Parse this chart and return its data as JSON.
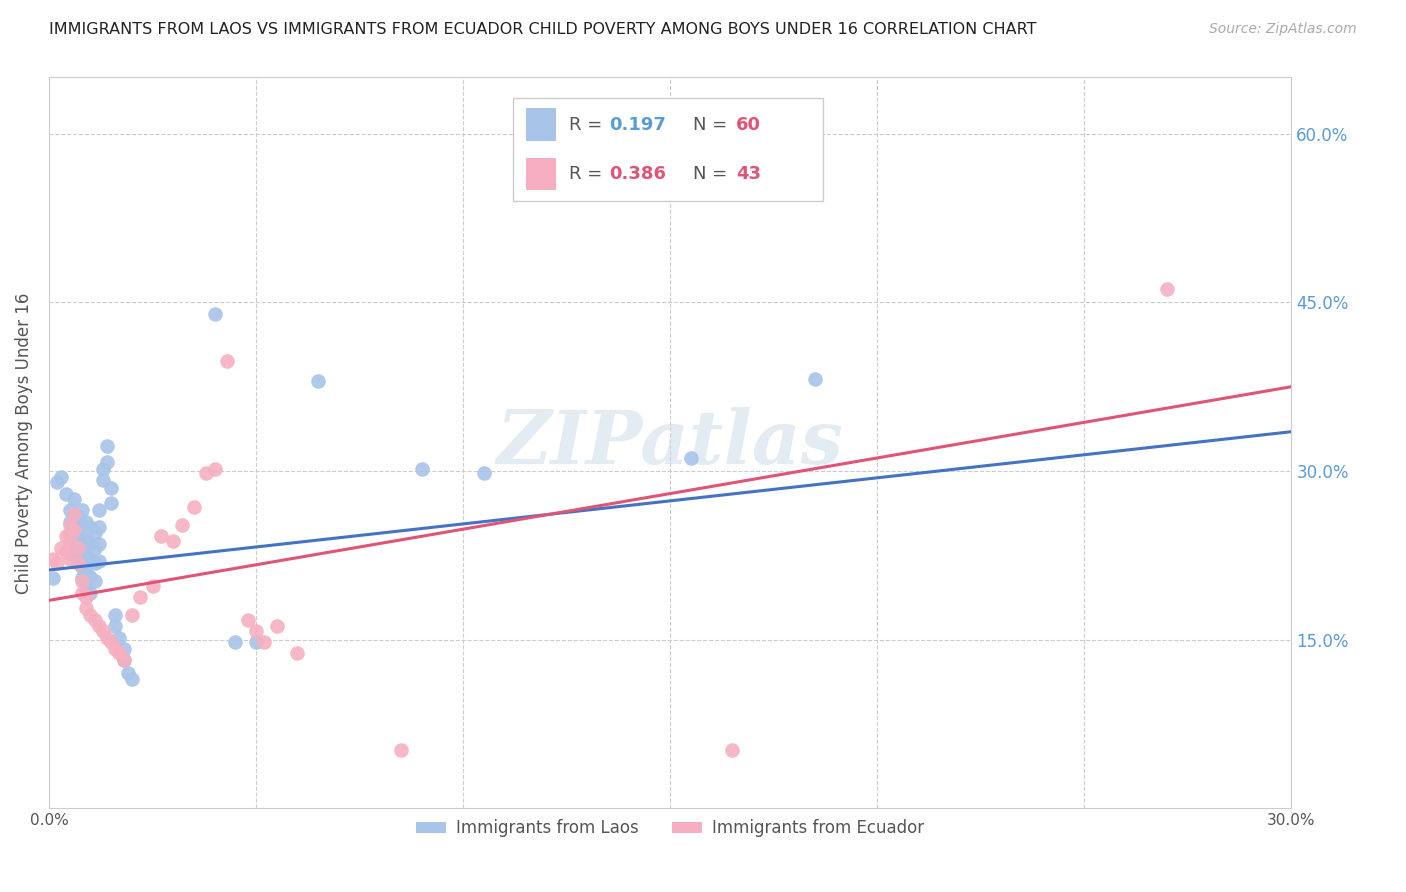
{
  "title": "IMMIGRANTS FROM LAOS VS IMMIGRANTS FROM ECUADOR CHILD POVERTY AMONG BOYS UNDER 16 CORRELATION CHART",
  "source": "Source: ZipAtlas.com",
  "ylabel": "Child Poverty Among Boys Under 16",
  "xmin": 0.0,
  "xmax": 0.3,
  "ymin": 0.0,
  "ymax": 0.65,
  "ytick_labels": [
    "15.0%",
    "30.0%",
    "45.0%",
    "60.0%"
  ],
  "ytick_positions": [
    0.15,
    0.3,
    0.45,
    0.6
  ],
  "legend_labels": [
    "Immigrants from Laos",
    "Immigrants from Ecuador"
  ],
  "legend_R": [
    "0.197",
    "0.386"
  ],
  "legend_N": [
    "60",
    "43"
  ],
  "color_blue": "#a8c4e8",
  "color_pink": "#f5afc0",
  "line_blue": "#4472c4",
  "line_pink": "#e05575",
  "watermark": "ZIPatlas",
  "blue_points": [
    [
      0.001,
      0.205
    ],
    [
      0.002,
      0.29
    ],
    [
      0.003,
      0.295
    ],
    [
      0.004,
      0.28
    ],
    [
      0.005,
      0.265
    ],
    [
      0.005,
      0.255
    ],
    [
      0.005,
      0.245
    ],
    [
      0.006,
      0.275
    ],
    [
      0.006,
      0.25
    ],
    [
      0.006,
      0.235
    ],
    [
      0.006,
      0.225
    ],
    [
      0.007,
      0.26
    ],
    [
      0.007,
      0.248
    ],
    [
      0.007,
      0.232
    ],
    [
      0.007,
      0.218
    ],
    [
      0.008,
      0.265
    ],
    [
      0.008,
      0.252
    ],
    [
      0.008,
      0.24
    ],
    [
      0.008,
      0.228
    ],
    [
      0.008,
      0.215
    ],
    [
      0.008,
      0.205
    ],
    [
      0.009,
      0.255
    ],
    [
      0.009,
      0.24
    ],
    [
      0.009,
      0.225
    ],
    [
      0.009,
      0.21
    ],
    [
      0.009,
      0.196
    ],
    [
      0.01,
      0.25
    ],
    [
      0.01,
      0.236
    ],
    [
      0.01,
      0.222
    ],
    [
      0.01,
      0.206
    ],
    [
      0.01,
      0.192
    ],
    [
      0.011,
      0.245
    ],
    [
      0.011,
      0.232
    ],
    [
      0.011,
      0.218
    ],
    [
      0.011,
      0.202
    ],
    [
      0.012,
      0.265
    ],
    [
      0.012,
      0.25
    ],
    [
      0.012,
      0.235
    ],
    [
      0.012,
      0.22
    ],
    [
      0.013,
      0.302
    ],
    [
      0.013,
      0.292
    ],
    [
      0.014,
      0.322
    ],
    [
      0.014,
      0.308
    ],
    [
      0.015,
      0.285
    ],
    [
      0.015,
      0.272
    ],
    [
      0.016,
      0.172
    ],
    [
      0.016,
      0.162
    ],
    [
      0.017,
      0.152
    ],
    [
      0.018,
      0.142
    ],
    [
      0.018,
      0.132
    ],
    [
      0.019,
      0.12
    ],
    [
      0.02,
      0.115
    ],
    [
      0.04,
      0.44
    ],
    [
      0.045,
      0.148
    ],
    [
      0.05,
      0.148
    ],
    [
      0.065,
      0.38
    ],
    [
      0.09,
      0.302
    ],
    [
      0.105,
      0.298
    ],
    [
      0.155,
      0.312
    ],
    [
      0.185,
      0.382
    ]
  ],
  "pink_points": [
    [
      0.001,
      0.222
    ],
    [
      0.002,
      0.218
    ],
    [
      0.003,
      0.232
    ],
    [
      0.004,
      0.242
    ],
    [
      0.004,
      0.228
    ],
    [
      0.005,
      0.252
    ],
    [
      0.005,
      0.238
    ],
    [
      0.005,
      0.222
    ],
    [
      0.006,
      0.262
    ],
    [
      0.006,
      0.248
    ],
    [
      0.007,
      0.232
    ],
    [
      0.007,
      0.218
    ],
    [
      0.008,
      0.202
    ],
    [
      0.008,
      0.192
    ],
    [
      0.009,
      0.188
    ],
    [
      0.009,
      0.178
    ],
    [
      0.01,
      0.172
    ],
    [
      0.011,
      0.168
    ],
    [
      0.012,
      0.162
    ],
    [
      0.013,
      0.158
    ],
    [
      0.014,
      0.152
    ],
    [
      0.015,
      0.148
    ],
    [
      0.016,
      0.142
    ],
    [
      0.017,
      0.138
    ],
    [
      0.018,
      0.132
    ],
    [
      0.02,
      0.172
    ],
    [
      0.022,
      0.188
    ],
    [
      0.025,
      0.198
    ],
    [
      0.027,
      0.242
    ],
    [
      0.03,
      0.238
    ],
    [
      0.032,
      0.252
    ],
    [
      0.035,
      0.268
    ],
    [
      0.038,
      0.298
    ],
    [
      0.04,
      0.302
    ],
    [
      0.043,
      0.398
    ],
    [
      0.048,
      0.168
    ],
    [
      0.05,
      0.158
    ],
    [
      0.052,
      0.148
    ],
    [
      0.055,
      0.162
    ],
    [
      0.06,
      0.138
    ],
    [
      0.085,
      0.052
    ],
    [
      0.165,
      0.052
    ],
    [
      0.27,
      0.462
    ]
  ],
  "blue_line_x": [
    0.0,
    0.3
  ],
  "blue_line_y": [
    0.212,
    0.335
  ],
  "pink_line_x": [
    0.0,
    0.3
  ],
  "pink_line_y": [
    0.185,
    0.375
  ]
}
